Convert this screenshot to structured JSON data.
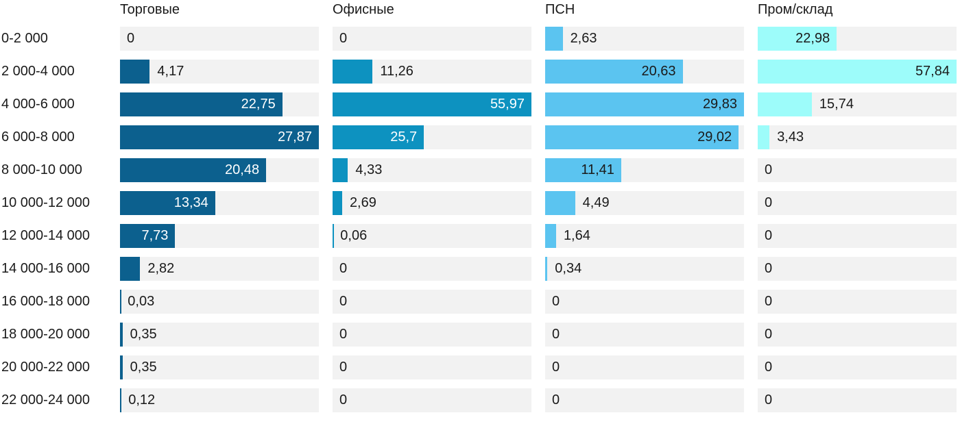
{
  "chart_data": {
    "type": "bar",
    "orientation": "horizontal",
    "title": "",
    "xlabel": "",
    "ylabel": "",
    "categories": [
      "0-2 000",
      "2 000-4 000",
      "4 000-6 000",
      "6 000-8 000",
      "8 000-10 000",
      "10 000-12 000",
      "12 000-14 000",
      "14 000-16 000",
      "16 000-18 000",
      "18 000-20 000",
      "20 000-22 000",
      "22 000-24 000"
    ],
    "series": [
      {
        "name": "Торговые",
        "color": "#0c608e",
        "inside_label_color": "#ffffff",
        "values": [
          0,
          4.17,
          22.75,
          27.87,
          20.48,
          13.34,
          7.73,
          2.82,
          0.03,
          0.35,
          0.35,
          0.12
        ]
      },
      {
        "name": "Офисные",
        "color": "#0d92c0",
        "inside_label_color": "#ffffff",
        "values": [
          0,
          11.26,
          55.97,
          25.7,
          4.33,
          2.69,
          0.06,
          0,
          0,
          0,
          0,
          0
        ]
      },
      {
        "name": "ПСН",
        "color": "#5bc4f0",
        "inside_label_color": "#1a1a1a",
        "values": [
          2.63,
          20.63,
          29.83,
          29.02,
          11.41,
          4.49,
          1.64,
          0.34,
          0,
          0,
          0,
          0
        ]
      },
      {
        "name": "Пром/склад",
        "color": "#9dfcfa",
        "inside_label_color": "#1a1a1a",
        "values": [
          22.98,
          57.84,
          15.74,
          3.43,
          0,
          0,
          0,
          0,
          0,
          0,
          0,
          0
        ]
      }
    ],
    "track_color": "#f2f2f2",
    "text_color": "#1a1a1a",
    "decimal_separator": ",",
    "scaling": "each column scaled to its own max value (max bar fills full track)",
    "legend_position": "column headers on top",
    "grid": false
  }
}
